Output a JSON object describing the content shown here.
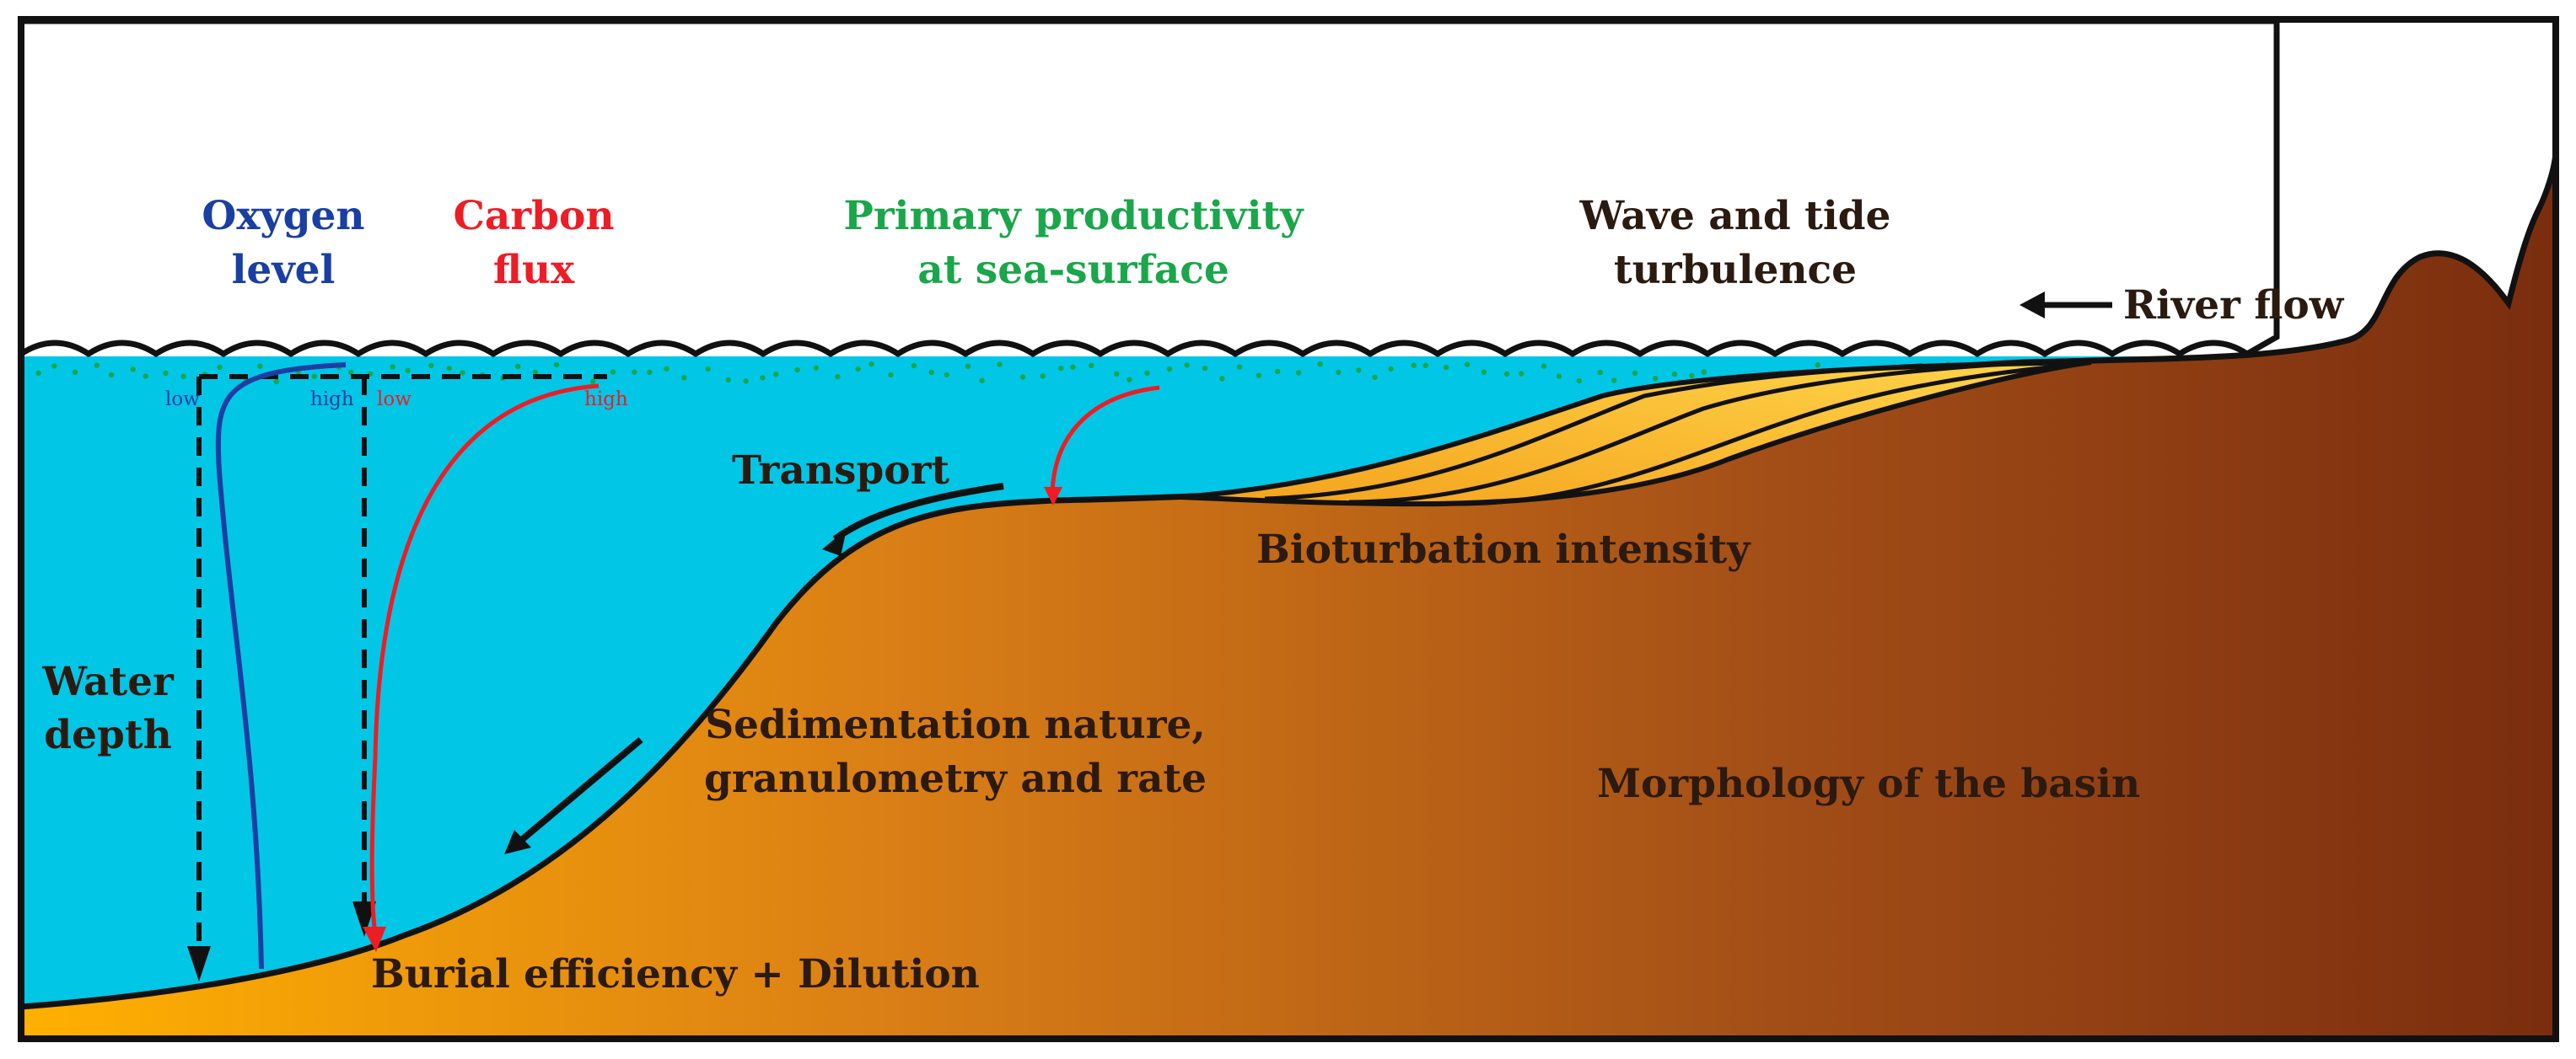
{
  "labels": {
    "oxygen_title_1": "Oxygen",
    "oxygen_title_2": "level",
    "carbon_title_1": "Carbon",
    "carbon_title_2": "flux",
    "productivity_1": "Primary productivity",
    "productivity_2": "at sea-surface",
    "wave_1": "Wave and tide",
    "wave_2": "turbulence",
    "river_flow": "River flow",
    "transport": "Transport",
    "bioturbation": "Bioturbation intensity",
    "water_depth_1": "Water",
    "water_depth_2": "depth",
    "sedimentation_1": "Sedimentation nature,",
    "sedimentation_2": "granulometry and rate",
    "morphology": "Morphology of the basin",
    "burial": "Burial efficiency + Dilution",
    "oxygen_low": "low",
    "oxygen_high": "high",
    "carbon_low": "low",
    "carbon_high": "high"
  },
  "colors": {
    "water": "#02c6e6",
    "oxygen": "#1a3fa3",
    "carbon": "#ee1c25",
    "productivity": "#1aa64a",
    "text_dark": "#2b1a10",
    "sediment_light": "#ffb000",
    "sediment_dark": "#7a2d0e",
    "prograding_light": "#ffd54a",
    "prograding_dark": "#f4a21c"
  }
}
